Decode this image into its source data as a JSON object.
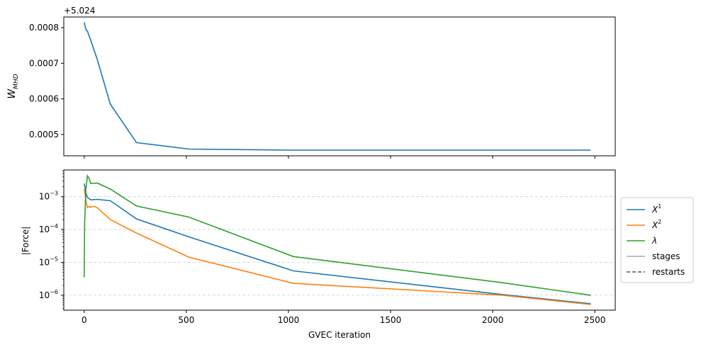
{
  "chart_data": [
    {
      "type": "line",
      "offset_label": "+5.024",
      "ylabel": "W",
      "ylabel_sub": "MHD",
      "ylim": [
        0.00044,
        0.00083
      ],
      "xlim": [
        -100,
        2600
      ],
      "yticks": [
        0.0005,
        0.0006,
        0.0007,
        0.0008
      ],
      "ytick_labels": [
        "0.0005",
        "0.0006",
        "0.0007",
        "0.0008"
      ],
      "xticks": [
        0,
        500,
        1000,
        1500,
        2000,
        2500
      ],
      "grid": false,
      "series": [
        {
          "color": "#1f77b4",
          "x": [
            0,
            8,
            16,
            32,
            64,
            128,
            256,
            512,
            1024,
            2048,
            2480
          ],
          "y": [
            0.000815,
            0.000795,
            0.00079,
            0.000765,
            0.00071,
            0.000585,
            0.000477,
            0.000459,
            0.000456,
            0.000456,
            0.000456
          ]
        }
      ]
    },
    {
      "type": "line",
      "ylabel": "|Force|",
      "xlabel": "GVEC iteration",
      "yscale": "log",
      "ylim": [
        3.5e-07,
        0.0065
      ],
      "xlim": [
        -100,
        2600
      ],
      "yticks": [
        1e-06,
        1e-05,
        0.0001,
        0.001
      ],
      "ytick_labels": [
        {
          "base": "10",
          "exp": "−6"
        },
        {
          "base": "10",
          "exp": "−5"
        },
        {
          "base": "10",
          "exp": "−4"
        },
        {
          "base": "10",
          "exp": "−3"
        }
      ],
      "xticks": [
        0,
        500,
        1000,
        1500,
        2000,
        2500
      ],
      "xtick_labels": [
        "0",
        "500",
        "1000",
        "1500",
        "2000",
        "2500"
      ],
      "grid": "y-dashed",
      "legend_placement": "right-outside",
      "series": [
        {
          "name": "X",
          "name_sup": "1",
          "color": "#1f77b4",
          "x": [
            0,
            4,
            8,
            16,
            32,
            64,
            128,
            256,
            512,
            1024,
            2048,
            2480
          ],
          "y": [
            0.0025,
            0.0019,
            0.0013,
            0.00095,
            0.0008,
            0.00083,
            0.00075,
            0.00021,
            6e-05,
            5.5e-06,
            1.05e-06,
            5.5e-07
          ]
        },
        {
          "name": "X",
          "name_sup": "2",
          "color": "#ff7f0e",
          "x": [
            0,
            4,
            8,
            16,
            24,
            32,
            48,
            64,
            128,
            256,
            512,
            1024,
            2048,
            2480
          ],
          "y": [
            0.0017,
            0.0012,
            0.0008,
            0.00046,
            0.0005,
            0.00048,
            0.00051,
            0.00046,
            0.0002,
            7.8e-05,
            1.45e-05,
            2.3e-06,
            1e-06,
            5.2e-07
          ]
        },
        {
          "name": "λ",
          "name_sup": "",
          "color": "#2ca02c",
          "x": [
            0,
            2,
            8,
            16,
            24,
            32,
            64,
            128,
            256,
            512,
            1024,
            2048,
            2480
          ],
          "y": [
            3.5e-06,
            0.00015,
            0.0016,
            0.0043,
            0.0036,
            0.0025,
            0.0026,
            0.0017,
            0.00052,
            0.00024,
            1.5e-05,
            2.4e-06,
            1e-06
          ]
        }
      ],
      "legend_extra": [
        {
          "name": "stages",
          "color": "#aaaaaa",
          "style": "solid"
        },
        {
          "name": "restarts",
          "color": "#555555",
          "style": "dashed"
        }
      ]
    }
  ]
}
